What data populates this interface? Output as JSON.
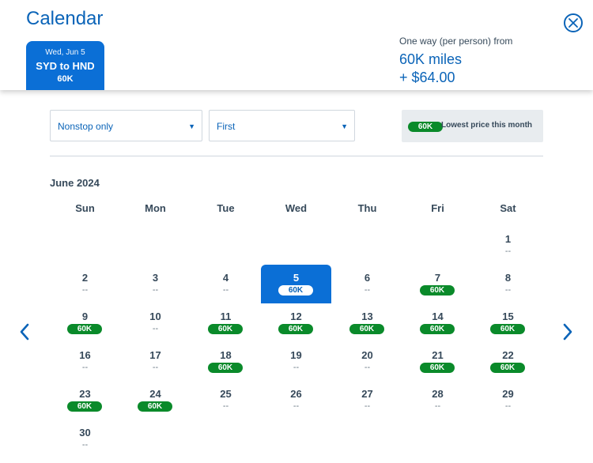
{
  "header": {
    "title": "Calendar",
    "selected_card": {
      "date": "Wed, Jun 5",
      "route": "SYD to HND",
      "price": "60K"
    },
    "fare": {
      "label": "One way (per person) from",
      "miles": "60K miles",
      "cash": "+ $64.00"
    }
  },
  "filters": {
    "stops": {
      "value": "Nonstop only"
    },
    "cabin": {
      "value": "First"
    },
    "legend": {
      "badge": "60K",
      "text": "Lowest price this month"
    }
  },
  "calendar": {
    "month": "June 2024",
    "weekdays": [
      "Sun",
      "Mon",
      "Tue",
      "Wed",
      "Thu",
      "Fri",
      "Sat"
    ],
    "selected_day": 5,
    "no_price": "--",
    "days": [
      {
        "day": "1",
        "price": ""
      },
      {
        "day": "2",
        "price": ""
      },
      {
        "day": "3",
        "price": ""
      },
      {
        "day": "4",
        "price": ""
      },
      {
        "day": "5",
        "price": "60K"
      },
      {
        "day": "6",
        "price": ""
      },
      {
        "day": "7",
        "price": "60K"
      },
      {
        "day": "8",
        "price": ""
      },
      {
        "day": "9",
        "price": "60K"
      },
      {
        "day": "10",
        "price": ""
      },
      {
        "day": "11",
        "price": "60K"
      },
      {
        "day": "12",
        "price": "60K"
      },
      {
        "day": "13",
        "price": "60K"
      },
      {
        "day": "14",
        "price": "60K"
      },
      {
        "day": "15",
        "price": "60K"
      },
      {
        "day": "16",
        "price": ""
      },
      {
        "day": "17",
        "price": ""
      },
      {
        "day": "18",
        "price": "60K"
      },
      {
        "day": "19",
        "price": ""
      },
      {
        "day": "20",
        "price": ""
      },
      {
        "day": "21",
        "price": "60K"
      },
      {
        "day": "22",
        "price": "60K"
      },
      {
        "day": "23",
        "price": "60K"
      },
      {
        "day": "24",
        "price": "60K"
      },
      {
        "day": "25",
        "price": ""
      },
      {
        "day": "26",
        "price": ""
      },
      {
        "day": "27",
        "price": ""
      },
      {
        "day": "28",
        "price": ""
      },
      {
        "day": "29",
        "price": ""
      },
      {
        "day": "30",
        "price": ""
      }
    ]
  },
  "icons": {
    "close": "close-circle-icon",
    "prev": "chevron-left-icon",
    "next": "chevron-right-icon",
    "dropdown": "caret-down-icon"
  },
  "colors": {
    "brand": "#0b64b8",
    "selected": "#0b6fd6",
    "price_badge": "#0a8a2a"
  }
}
